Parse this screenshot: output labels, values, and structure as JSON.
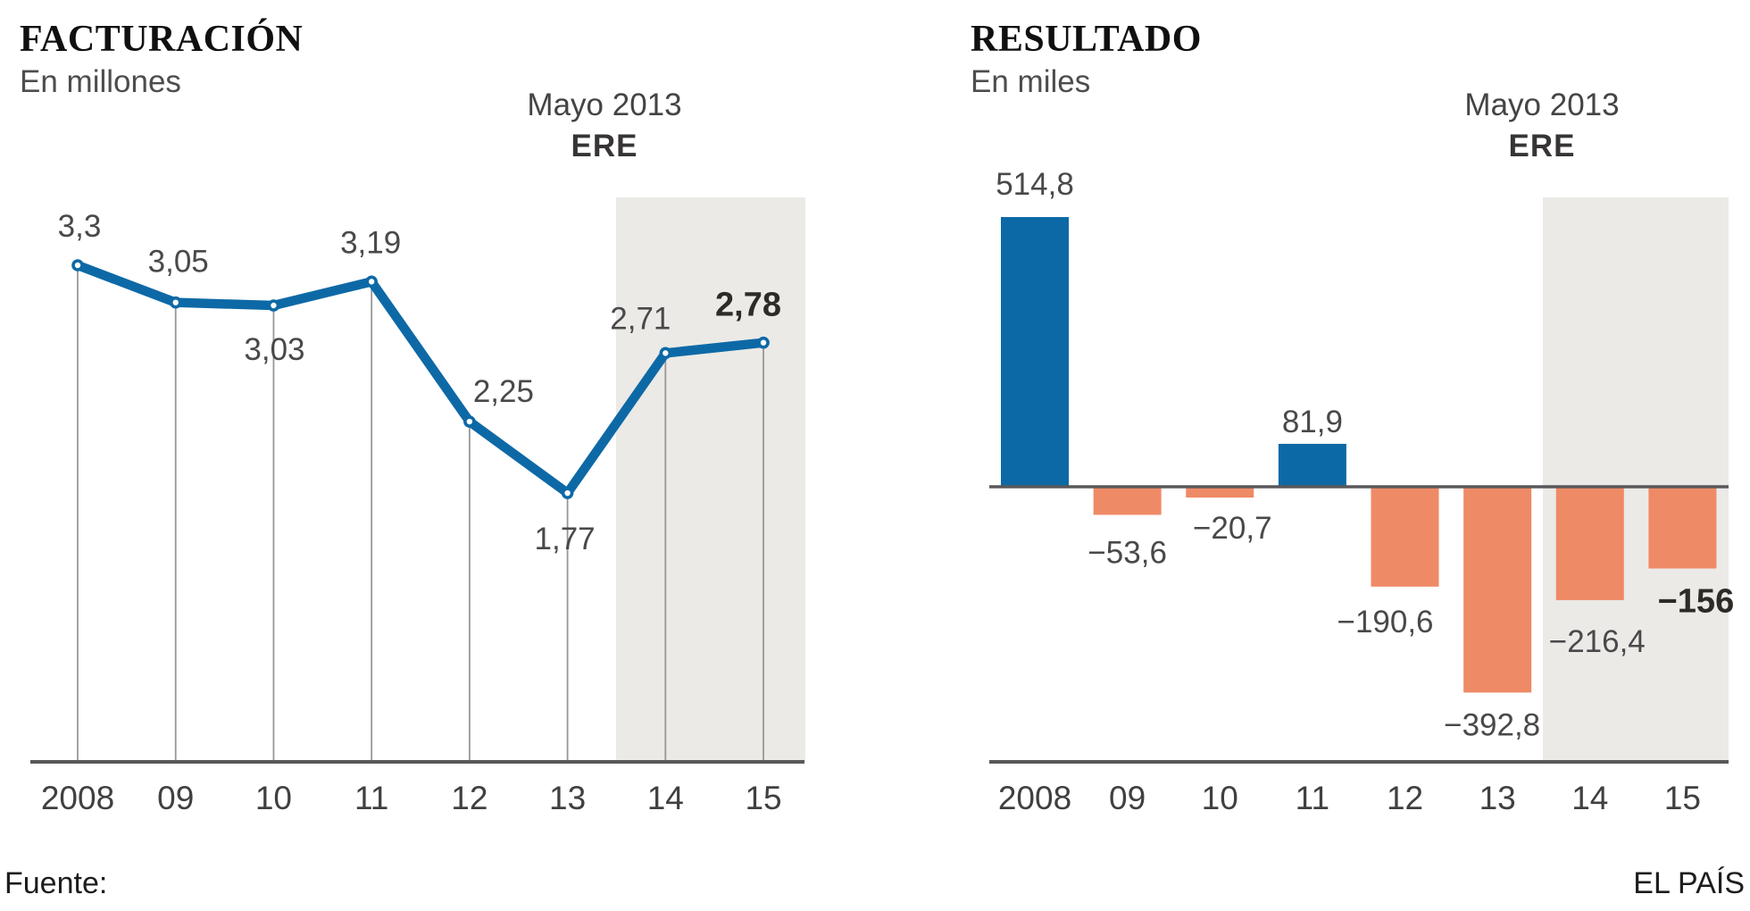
{
  "footer": {
    "source": "Fuente:",
    "brand": "EL PAÍS"
  },
  "chart_data": [
    {
      "type": "line",
      "title": "FACTURACIÓN",
      "subtitle": "En millones",
      "annotation_line1": "Mayo 2013",
      "annotation_line2": "ERE",
      "categories": [
        "2008",
        "09",
        "10",
        "11",
        "12",
        "13",
        "14",
        "15"
      ],
      "values": [
        3.3,
        3.05,
        3.03,
        3.19,
        2.25,
        1.77,
        2.71,
        2.78
      ],
      "labels": [
        "3,3",
        "3,05",
        "3,03",
        "3,19",
        "2,25",
        "1,77",
        "2,71",
        "2,78"
      ],
      "bold_label_index": 7,
      "ere_band_categories": [
        "14",
        "15"
      ],
      "ylim": [
        0,
        3.5
      ],
      "grid": false,
      "colors": {
        "line": "#0d69a6",
        "band": "#ebeae7",
        "axis": "#59585a",
        "dropline": "#979797"
      }
    },
    {
      "type": "bar",
      "title": "RESULTADO",
      "subtitle": "En miles",
      "annotation_line1": "Mayo 2013",
      "annotation_line2": "ERE",
      "categories": [
        "2008",
        "09",
        "10",
        "11",
        "12",
        "13",
        "14",
        "15"
      ],
      "values": [
        514.8,
        -53.6,
        -20.7,
        81.9,
        -190.6,
        -392.8,
        -216.4,
        -156
      ],
      "labels": [
        "514,8",
        "−53,6",
        "−20,7",
        "81,9",
        "−190,6",
        "−392,8",
        "−216,4",
        "−156"
      ],
      "bold_label_index": 7,
      "ere_band_categories": [
        "14",
        "15"
      ],
      "ylim": [
        -450,
        550
      ],
      "grid": false,
      "colors": {
        "positive": "#0d69a6",
        "negative": "#ef8a66",
        "band": "#ebeae7",
        "axis": "#59585a"
      }
    }
  ]
}
